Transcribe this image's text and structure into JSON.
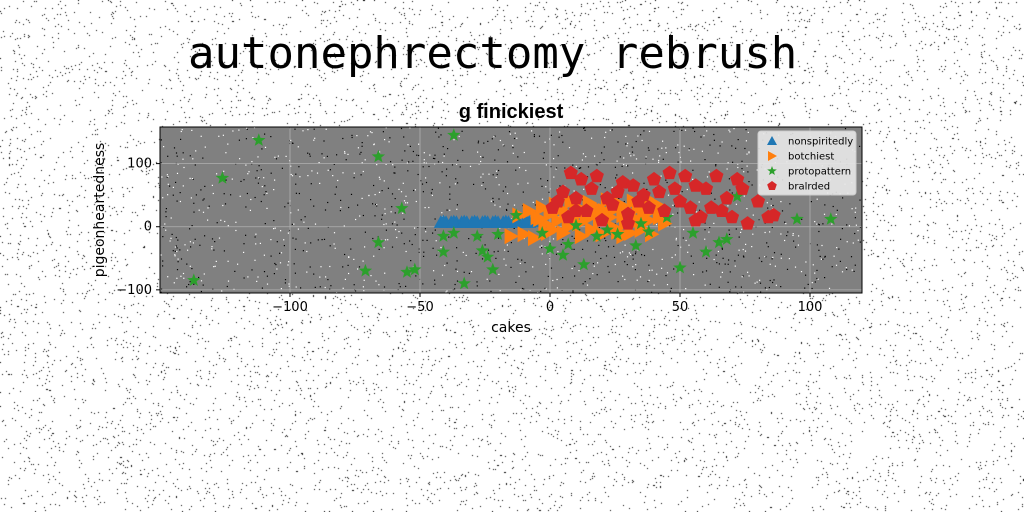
{
  "page_title": "autonephrectomy rebrush",
  "chart_data": {
    "type": "scatter",
    "title": "g finickiest",
    "xlabel": "cakes",
    "ylabel": "pigeonheartedness",
    "xlim": [
      -150,
      120
    ],
    "ylim": [
      -105,
      158
    ],
    "xticks": [
      -100,
      -50,
      0,
      50,
      100
    ],
    "yticks": [
      -100,
      0,
      100
    ],
    "grid": true,
    "background": "#808080",
    "legend_position": "top-right",
    "series": [
      {
        "name": "nonspiritedly",
        "marker": "triangle-up",
        "color": "#1f77b4",
        "points": [
          [
            -42,
            7
          ],
          [
            -40,
            7
          ],
          [
            -38,
            7
          ],
          [
            -36,
            7
          ],
          [
            -34,
            7
          ],
          [
            -32,
            7
          ],
          [
            -30,
            7
          ],
          [
            -28,
            7
          ],
          [
            -26,
            7
          ],
          [
            -24,
            7
          ],
          [
            -22,
            7
          ],
          [
            -20,
            7
          ],
          [
            -18,
            7
          ],
          [
            -16,
            7
          ],
          [
            -14,
            7
          ],
          [
            -12,
            7
          ],
          [
            -10,
            7
          ],
          [
            -8,
            7
          ],
          [
            -41,
            8
          ],
          [
            -37,
            8
          ],
          [
            -33,
            8
          ],
          [
            -29,
            8
          ],
          [
            -25,
            8
          ],
          [
            -21,
            8
          ],
          [
            -17,
            8
          ],
          [
            -13,
            8
          ],
          [
            -9,
            8
          ],
          [
            -6,
            8
          ]
        ]
      },
      {
        "name": "botchiest",
        "marker": "triangle-right",
        "color": "#ff7f0e",
        "points": [
          [
            -15,
            -15
          ],
          [
            -12,
            18
          ],
          [
            -8,
            25
          ],
          [
            -5,
            15
          ],
          [
            -3,
            30
          ],
          [
            -2,
            5
          ],
          [
            0,
            20
          ],
          [
            1,
            -5
          ],
          [
            2,
            35
          ],
          [
            3,
            10
          ],
          [
            4,
            28
          ],
          [
            5,
            -10
          ],
          [
            6,
            22
          ],
          [
            7,
            0
          ],
          [
            8,
            40
          ],
          [
            9,
            15
          ],
          [
            10,
            32
          ],
          [
            11,
            5
          ],
          [
            12,
            -15
          ],
          [
            13,
            25
          ],
          [
            14,
            12
          ],
          [
            15,
            38
          ],
          [
            16,
            -5
          ],
          [
            17,
            20
          ],
          [
            18,
            30
          ],
          [
            19,
            8
          ],
          [
            20,
            -12
          ],
          [
            21,
            25
          ],
          [
            22,
            42
          ],
          [
            23,
            15
          ],
          [
            24,
            0
          ],
          [
            25,
            28
          ],
          [
            26,
            -8
          ],
          [
            27,
            35
          ],
          [
            28,
            18
          ],
          [
            29,
            5
          ],
          [
            30,
            25
          ],
          [
            31,
            -10
          ],
          [
            32,
            40
          ],
          [
            33,
            12
          ],
          [
            34,
            30
          ],
          [
            35,
            -5
          ],
          [
            36,
            20
          ],
          [
            37,
            45
          ],
          [
            38,
            10
          ],
          [
            39,
            -12
          ],
          [
            40,
            28
          ],
          [
            41,
            35
          ],
          [
            42,
            15
          ],
          [
            43,
            22
          ],
          [
            44,
            5
          ],
          [
            -10,
            -12
          ],
          [
            -6,
            -18
          ],
          [
            -4,
            12
          ],
          [
            -1,
            -10
          ],
          [
            20,
            20
          ],
          [
            24,
            38
          ],
          [
            28,
            -15
          ],
          [
            34,
            10
          ],
          [
            38,
            32
          ]
        ]
      },
      {
        "name": "protopattern",
        "marker": "star",
        "color": "#2ca02c",
        "points": [
          [
            -137,
            -85
          ],
          [
            -126,
            77
          ],
          [
            -112,
            137
          ],
          [
            -66,
            111
          ],
          [
            -66,
            -25
          ],
          [
            -71,
            -70
          ],
          [
            -57,
            29
          ],
          [
            -55,
            -72
          ],
          [
            -52,
            -68
          ],
          [
            -41,
            -15
          ],
          [
            -41,
            -40
          ],
          [
            -37,
            145
          ],
          [
            -37,
            -10
          ],
          [
            -33,
            -90
          ],
          [
            -28,
            -15
          ],
          [
            -26,
            -38
          ],
          [
            -24,
            -48
          ],
          [
            -22,
            -68
          ],
          [
            -20,
            -12
          ],
          [
            -13,
            18
          ],
          [
            -3,
            -10
          ],
          [
            0,
            -35
          ],
          [
            5,
            -45
          ],
          [
            7,
            -28
          ],
          [
            10,
            2
          ],
          [
            13,
            -60
          ],
          [
            18,
            -15
          ],
          [
            22,
            -5
          ],
          [
            26,
            -12
          ],
          [
            30,
            18
          ],
          [
            33,
            -30
          ],
          [
            35,
            5
          ],
          [
            38,
            -8
          ],
          [
            45,
            15
          ],
          [
            50,
            -65
          ],
          [
            55,
            -10
          ],
          [
            60,
            -40
          ],
          [
            65,
            -25
          ],
          [
            68,
            -20
          ],
          [
            72,
            48
          ],
          [
            95,
            12
          ],
          [
            108,
            12
          ]
        ]
      },
      {
        "name": "bralrded",
        "marker": "pentagon",
        "color": "#d62728",
        "points": [
          [
            1,
            30
          ],
          [
            3,
            40
          ],
          [
            5,
            55
          ],
          [
            7,
            15
          ],
          [
            8,
            85
          ],
          [
            10,
            45
          ],
          [
            12,
            75
          ],
          [
            14,
            25
          ],
          [
            16,
            60
          ],
          [
            18,
            80
          ],
          [
            20,
            10
          ],
          [
            22,
            45
          ],
          [
            24,
            35
          ],
          [
            26,
            55
          ],
          [
            28,
            70
          ],
          [
            30,
            20
          ],
          [
            32,
            65
          ],
          [
            34,
            40
          ],
          [
            36,
            50
          ],
          [
            38,
            30
          ],
          [
            40,
            75
          ],
          [
            42,
            55
          ],
          [
            44,
            25
          ],
          [
            46,
            85
          ],
          [
            48,
            60
          ],
          [
            50,
            40
          ],
          [
            52,
            80
          ],
          [
            54,
            30
          ],
          [
            56,
            65
          ],
          [
            58,
            15
          ],
          [
            60,
            60
          ],
          [
            62,
            30
          ],
          [
            64,
            80
          ],
          [
            66,
            25
          ],
          [
            68,
            45
          ],
          [
            70,
            15
          ],
          [
            72,
            75
          ],
          [
            74,
            60
          ],
          [
            76,
            5
          ],
          [
            80,
            40
          ],
          [
            84,
            15
          ],
          [
            86,
            18
          ],
          [
            10,
            25
          ],
          [
            30,
            5
          ],
          [
            56,
            10
          ]
        ]
      }
    ]
  }
}
